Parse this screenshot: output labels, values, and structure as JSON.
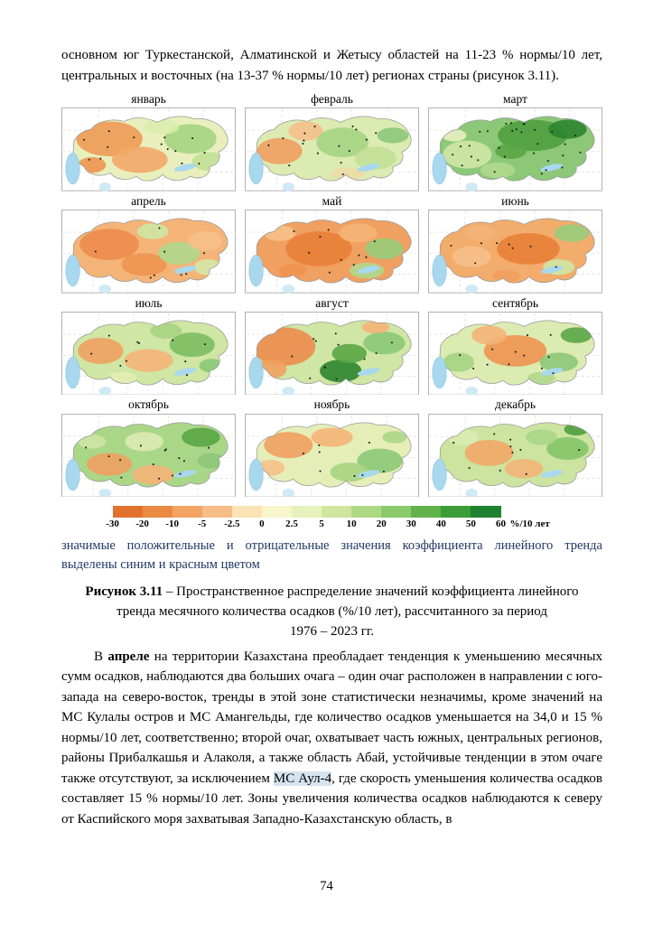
{
  "page": {
    "number": "74"
  },
  "top_paragraph": "основном юг Туркестанской, Алматинской и Жетысу областей на 11-23 % нормы/10 лет, центральных и восточных (на 13-37 % нормы/10 лет) регионах страны (рисунок 3.11).",
  "figure": {
    "sea_color": "#a8d8ee",
    "months": [
      {
        "label": "январь",
        "base": "#e9efbc",
        "dots": 14,
        "patches": [
          [
            55,
            36,
            38,
            20,
            "#f09a55"
          ],
          [
            90,
            60,
            32,
            15,
            "#f2a868"
          ],
          [
            148,
            36,
            30,
            17,
            "#a6d482"
          ],
          [
            170,
            62,
            20,
            11,
            "#c2e096"
          ],
          [
            115,
            22,
            20,
            9,
            "#dcecae"
          ],
          [
            35,
            66,
            16,
            9,
            "#ee9450"
          ]
        ]
      },
      {
        "label": "февраль",
        "base": "#dcebb2",
        "dots": 16,
        "patches": [
          [
            40,
            50,
            26,
            15,
            "#f0a060"
          ],
          [
            70,
            27,
            20,
            11,
            "#f6c08a"
          ],
          [
            112,
            40,
            30,
            17,
            "#a6d482"
          ],
          [
            150,
            58,
            24,
            13,
            "#c2e096"
          ],
          [
            170,
            32,
            18,
            9,
            "#8cc878"
          ],
          [
            118,
            76,
            20,
            7,
            "#ecdca4"
          ]
        ]
      },
      {
        "label": "март",
        "base": "#8cc878",
        "dots": 30,
        "patches": [
          [
            120,
            32,
            40,
            18,
            "#4f9e3f"
          ],
          [
            160,
            25,
            22,
            11,
            "#2e8531"
          ],
          [
            45,
            54,
            28,
            16,
            "#cfe6a4"
          ],
          [
            80,
            72,
            20,
            9,
            "#b0d88c"
          ],
          [
            30,
            32,
            14,
            7,
            "#e8f0c0"
          ],
          [
            95,
            50,
            18,
            9,
            "#5aa646"
          ]
        ]
      },
      {
        "label": "апрель",
        "base": "#f4b478",
        "dots": 8,
        "patches": [
          [
            55,
            40,
            34,
            18,
            "#ec8c4c"
          ],
          [
            95,
            63,
            26,
            13,
            "#ee9450"
          ],
          [
            135,
            50,
            24,
            13,
            "#b0d88c"
          ],
          [
            105,
            25,
            18,
            9,
            "#cfe6a4"
          ],
          [
            165,
            36,
            20,
            11,
            "#f6c08a"
          ],
          [
            168,
            66,
            16,
            9,
            "#d4e8a8"
          ]
        ]
      },
      {
        "label": "май",
        "base": "#f0a060",
        "dots": 10,
        "patches": [
          [
            85,
            45,
            38,
            20,
            "#e88038"
          ],
          [
            130,
            27,
            22,
            11,
            "#f4b478"
          ],
          [
            160,
            45,
            22,
            12,
            "#98cc7c"
          ],
          [
            140,
            70,
            20,
            9,
            "#b0d88c"
          ],
          [
            40,
            27,
            18,
            9,
            "#f6c08a"
          ],
          [
            55,
            70,
            16,
            8,
            "#ee9450"
          ]
        ]
      },
      {
        "label": "июнь",
        "base": "#f2ac6c",
        "dots": 8,
        "patches": [
          [
            115,
            45,
            36,
            18,
            "#e88038"
          ],
          [
            50,
            54,
            22,
            12,
            "#f6c08a"
          ],
          [
            60,
            27,
            18,
            9,
            "#f4b478"
          ],
          [
            165,
            27,
            20,
            10,
            "#98cc7c"
          ],
          [
            150,
            66,
            18,
            9,
            "#cfe6a4"
          ],
          [
            90,
            76,
            16,
            7,
            "#f0a060"
          ]
        ]
      },
      {
        "label": "июль",
        "base": "#cfe6a4",
        "dots": 10,
        "patches": [
          [
            45,
            45,
            26,
            15,
            "#f0a060"
          ],
          [
            100,
            56,
            28,
            13,
            "#f4b478"
          ],
          [
            150,
            38,
            26,
            14,
            "#7cbc60"
          ],
          [
            120,
            22,
            18,
            9,
            "#a6d482"
          ],
          [
            172,
            62,
            14,
            8,
            "#8cc878"
          ],
          [
            70,
            76,
            16,
            7,
            "#e2eeb0"
          ]
        ]
      },
      {
        "label": "август",
        "base": "#cfe6a4",
        "dots": 12,
        "patches": [
          [
            45,
            40,
            36,
            22,
            "#ec8c4c"
          ],
          [
            30,
            66,
            18,
            11,
            "#f0a060"
          ],
          [
            110,
            68,
            24,
            13,
            "#2e8531"
          ],
          [
            120,
            48,
            20,
            11,
            "#5aa646"
          ],
          [
            160,
            36,
            24,
            13,
            "#8cc878"
          ],
          [
            150,
            18,
            16,
            7,
            "#f4b478"
          ]
        ]
      },
      {
        "label": "сентябрь",
        "base": "#dcebb2",
        "dots": 12,
        "patches": [
          [
            100,
            45,
            36,
            18,
            "#ee9450"
          ],
          [
            70,
            27,
            20,
            11,
            "#f4b478"
          ],
          [
            150,
            58,
            22,
            11,
            "#8cc878"
          ],
          [
            170,
            27,
            18,
            9,
            "#5aa646"
          ],
          [
            35,
            58,
            18,
            11,
            "#a6d482"
          ],
          [
            130,
            76,
            16,
            7,
            "#b0d88c"
          ]
        ]
      },
      {
        "label": "октябрь",
        "base": "#aad688",
        "dots": 14,
        "patches": [
          [
            55,
            58,
            26,
            13,
            "#f0a060"
          ],
          [
            105,
            70,
            24,
            11,
            "#f4b478"
          ],
          [
            95,
            32,
            22,
            11,
            "#dcebb2"
          ],
          [
            160,
            27,
            22,
            11,
            "#5aa646"
          ],
          [
            172,
            54,
            16,
            9,
            "#8cc878"
          ],
          [
            35,
            32,
            16,
            8,
            "#cfe6a4"
          ]
        ]
      },
      {
        "label": "ноябрь",
        "base": "#e6eeb8",
        "dots": 8,
        "patches": [
          [
            50,
            36,
            28,
            15,
            "#f0a060"
          ],
          [
            100,
            27,
            24,
            11,
            "#f4b478"
          ],
          [
            155,
            54,
            26,
            14,
            "#8cc878"
          ],
          [
            120,
            67,
            22,
            11,
            "#a6d482"
          ],
          [
            30,
            62,
            16,
            9,
            "#f6c08a"
          ],
          [
            172,
            27,
            14,
            7,
            "#aad688"
          ]
        ]
      },
      {
        "label": "декабрь",
        "base": "#cce4a0",
        "dots": 10,
        "patches": [
          [
            70,
            45,
            28,
            15,
            "#f2a868"
          ],
          [
            110,
            63,
            22,
            11,
            "#f4b478"
          ],
          [
            160,
            40,
            24,
            13,
            "#84c468"
          ],
          [
            170,
            18,
            14,
            7,
            "#4f9e3f"
          ],
          [
            40,
            27,
            18,
            9,
            "#dcebb2"
          ],
          [
            130,
            27,
            18,
            9,
            "#aad688"
          ]
        ]
      }
    ],
    "legend": {
      "colors": [
        "#e2712e",
        "#ea8a43",
        "#f2a463",
        "#f6bd88",
        "#fbe3b6",
        "#f7f6cd",
        "#e7f1bb",
        "#cfe69f",
        "#aed984",
        "#8bc96a",
        "#62b24c",
        "#3c9c38",
        "#1f8230"
      ],
      "ticks": [
        "-30",
        "-20",
        "-10",
        "-5",
        "-2.5",
        "0",
        "2.5",
        "5",
        "10",
        "20",
        "30",
        "40",
        "50",
        "60"
      ],
      "unit": "%/10 лет",
      "note_color": "#1f3864",
      "note": "значимые положительные и отрицательные значения коэффициента линейного тренда выделены синим и красным цветом"
    },
    "caption": {
      "label": "Рисунок 3.11",
      "text": " – Пространственное распределение значений коэффициента линейного тренда месячного количества осадков (%/10 лет), рассчитанного за период",
      "period": "1976 – 2023 гг."
    }
  },
  "body": {
    "segments": [
      {
        "text": "В ",
        "style": "normal"
      },
      {
        "text": "апреле",
        "style": "bold"
      },
      {
        "text": " на территории Казахстана преобладает тенденция к уменьшению месячных сумм осадков, наблюдаются два больших очага – один очаг расположен в направлении с юго-запада на северо-восток, тренды в этой зоне статистически незначимы, кроме значений на МС Кулалы остров и МС Амангельды, где количество осадков уменьшается на 34,0 и 15 % нормы/10 лет, соответственно; второй очаг, охватывает часть южных, центральных регионов, районы Прибалкашья и Алаколя, а также область Абай, устойчивые тенденции в этом очаге также отсутствуют, за исключением ",
        "style": "normal"
      },
      {
        "text": "МС Аул-4",
        "style": "highlight"
      },
      {
        "text": ", где скорость уменьшения количества осадков составляет 15 % нормы/10 лет. Зоны увеличения количества осадков наблюдаются к северу от Каспийского моря захватывая Западно-Казахстанскую область, в",
        "style": "normal"
      }
    ]
  }
}
